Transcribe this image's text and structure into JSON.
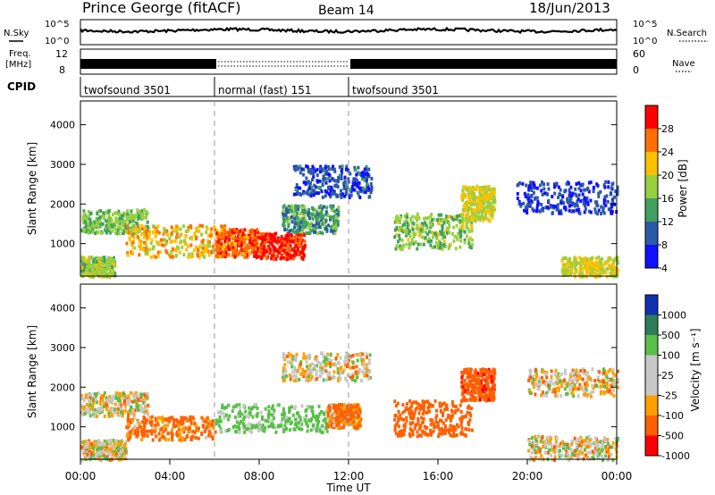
{
  "header": {
    "station": "Prince George (fitACF)",
    "beam": "Beam 14",
    "date": "18/Jun/2013"
  },
  "nsky_panel": {
    "left_label": "N.Sky",
    "right_label": "N.Search",
    "left_ticks": [
      "10^5",
      "10^0"
    ],
    "right_ticks": [
      "10^5",
      "10^0"
    ]
  },
  "freq_panel": {
    "left_label_1": "Freq.",
    "left_label_2": "[MHz]",
    "right_label": "Nave",
    "left_ticks": [
      "12",
      "8"
    ],
    "right_ticks": [
      "60",
      "0"
    ]
  },
  "cpid": {
    "label": "CPID",
    "modes": [
      {
        "name": "twofsound 3501",
        "start": 0,
        "end": 6
      },
      {
        "name": "normal (fast) 151",
        "start": 6,
        "end": 12
      },
      {
        "name": "twofsound 3501",
        "start": 12,
        "end": 24
      }
    ]
  },
  "x_axis": {
    "label": "Time UT",
    "ticks": [
      "00:00",
      "04:00",
      "08:00",
      "12:00",
      "16:00",
      "20:00",
      "00:00"
    ]
  },
  "chart_data": [
    {
      "type": "heatmap",
      "name": "power",
      "ylabel": "Slant Range [km]",
      "yticks": [
        1000,
        2000,
        3000,
        4000
      ],
      "ylim": [
        180,
        4600
      ],
      "xlim": [
        0,
        24
      ],
      "colorbar": {
        "label": "Power [dB]",
        "ticks": [
          "28",
          "24",
          "20",
          "16",
          "12",
          "8",
          "4"
        ],
        "colors": [
          "#ff0000",
          "#ff7000",
          "#ffc000",
          "#98d040",
          "#3fa060",
          "#2d5aa8",
          "#1010ff"
        ]
      },
      "regions": [
        {
          "t0": 0.0,
          "t1": 3.0,
          "r0": 1300,
          "r1": 1900,
          "level": 16
        },
        {
          "t0": 2.0,
          "t1": 6.5,
          "r0": 700,
          "r1": 1500,
          "level": 22
        },
        {
          "t0": 6.0,
          "t1": 8.0,
          "r0": 700,
          "r1": 1400,
          "level": 27
        },
        {
          "t0": 8.0,
          "t1": 10.0,
          "r0": 650,
          "r1": 1300,
          "level": 29
        },
        {
          "t0": 9.0,
          "t1": 11.5,
          "r0": 1300,
          "r1": 2000,
          "level": 14
        },
        {
          "t0": 14.0,
          "t1": 17.5,
          "r0": 900,
          "r1": 1800,
          "level": 17
        },
        {
          "t0": 17.0,
          "t1": 18.5,
          "r0": 1600,
          "r1": 2500,
          "level": 20
        },
        {
          "t0": 0.0,
          "t1": 1.5,
          "r0": 200,
          "r1": 700,
          "level": 18
        },
        {
          "t0": 21.5,
          "t1": 24.0,
          "r0": 200,
          "r1": 700,
          "level": 20
        },
        {
          "t0": 19.5,
          "t1": 24.0,
          "r0": 1800,
          "r1": 2600,
          "level": 8
        },
        {
          "t0": 9.5,
          "t1": 13.0,
          "r0": 2200,
          "r1": 3000,
          "level": 9
        }
      ]
    },
    {
      "type": "heatmap",
      "name": "velocity",
      "ylabel": "Slant Range [km]",
      "yticks": [
        1000,
        2000,
        3000,
        4000
      ],
      "ylim": [
        180,
        4600
      ],
      "xlim": [
        0,
        24
      ],
      "colorbar": {
        "label": "Velocity [m s⁻¹]",
        "ticks": [
          "1000",
          "500",
          "100",
          "25",
          "-25",
          "-100",
          "-500",
          "-1000"
        ],
        "colors": [
          "#1030b0",
          "#2e7d5a",
          "#58c048",
          "#c8c8c8",
          "#c8c8c8",
          "#ffa000",
          "#ff6000",
          "#ff0000"
        ]
      },
      "regions": [
        {
          "t0": 0.0,
          "t1": 3.0,
          "r0": 1300,
          "r1": 1900,
          "level": 10
        },
        {
          "t0": 2.0,
          "t1": 6.0,
          "r0": 700,
          "r1": 1300,
          "level": -150
        },
        {
          "t0": 6.0,
          "t1": 11.0,
          "r0": 900,
          "r1": 1600,
          "level": 200
        },
        {
          "t0": 11.0,
          "t1": 12.5,
          "r0": 1000,
          "r1": 1600,
          "level": -150
        },
        {
          "t0": 14.0,
          "t1": 17.5,
          "r0": 800,
          "r1": 1700,
          "level": -300
        },
        {
          "t0": 17.0,
          "t1": 18.5,
          "r0": 1700,
          "r1": 2500,
          "level": -400
        },
        {
          "t0": 0.0,
          "t1": 2.0,
          "r0": 200,
          "r1": 700,
          "level": 5
        },
        {
          "t0": 20.0,
          "t1": 24.0,
          "r0": 1800,
          "r1": 2500,
          "level": -5
        },
        {
          "t0": 20.0,
          "t1": 24.0,
          "r0": 200,
          "r1": 800,
          "level": 0
        },
        {
          "t0": 9.0,
          "t1": 13.0,
          "r0": 2200,
          "r1": 2900,
          "level": 10
        }
      ]
    }
  ]
}
